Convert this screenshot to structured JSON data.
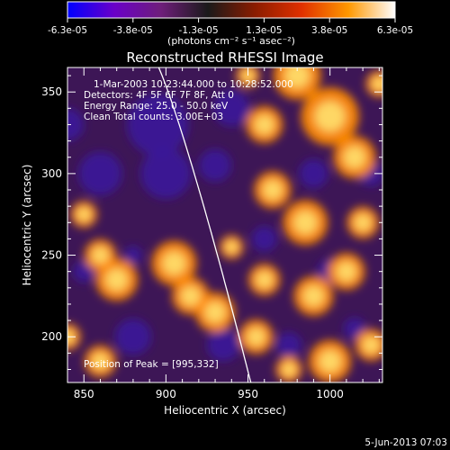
{
  "chart_data": {
    "type": "heatmap",
    "title": "Reconstructed RHESSI Image",
    "xlabel": "Heliocentric X (arcsec)",
    "ylabel": "Heliocentric Y (arcsec)",
    "xlim": [
      840,
      1032
    ],
    "ylim": [
      172,
      365
    ],
    "x_ticks": [
      850,
      900,
      950,
      1000
    ],
    "y_ticks": [
      200,
      250,
      300,
      350
    ],
    "colorbar": {
      "units": "(photons cm⁻² s⁻¹ asec⁻²)",
      "range": [
        -6.3e-05,
        6.3e-05
      ],
      "tick_labels": [
        "-6.3e-05",
        "-3.8e-05",
        "-1.3e-05",
        "1.3e-05",
        "3.8e-05",
        "6.3e-05"
      ],
      "colormap": [
        "#0000ff",
        "#6a00c8",
        "#6e1e7a",
        "#1a1a1a",
        "#8a1c00",
        "#e03000",
        "#ff9800",
        "#ffffff"
      ]
    },
    "annotations": [
      "1-Mar-2003 10:23:44.000 to 10:28:52.000",
      "Detectors: 4F 5F 6F 7F 8F, Att 0",
      "Energy Range: 25.0 - 50.0 keV",
      "Clean     Total counts: 3.00E+03"
    ],
    "peak_text": "Position of Peak = [995,332]",
    "footer_date": "5-Jun-2013 07:03",
    "limb_color": "#ffffff",
    "cold_color": "#3a1a9a",
    "warm_color": "#ff8a00",
    "hot_color": "#ffe070",
    "blobs": [
      {
        "x": 895,
        "y": 330,
        "w": 1.7
      },
      {
        "x": 900,
        "y": 300,
        "w": 1.4
      },
      {
        "x": 860,
        "y": 300,
        "w": 1.2
      },
      {
        "x": 940,
        "y": 340,
        "w": 1.0
      },
      {
        "x": 930,
        "y": 305,
        "w": 0.9
      },
      {
        "x": 840,
        "y": 330,
        "w": 0.9
      },
      {
        "x": 880,
        "y": 200,
        "w": 1.0
      },
      {
        "x": 935,
        "y": 195,
        "w": 0.9
      },
      {
        "x": 990,
        "y": 300,
        "w": 0.8
      },
      {
        "x": 1025,
        "y": 300,
        "w": 0.7
      },
      {
        "x": 1000,
        "y": 240,
        "w": 0.7
      },
      {
        "x": 960,
        "y": 260,
        "w": 0.7
      },
      {
        "x": 850,
        "y": 240,
        "w": 0.6
      },
      {
        "x": 975,
        "y": 195,
        "w": 0.7
      },
      {
        "x": 1015,
        "y": 205,
        "w": 0.6
      },
      {
        "x": 880,
        "y": 250,
        "w": 0.5
      }
    ],
    "hotspots": [
      {
        "x": 1000,
        "y": 335,
        "w": 2.2
      },
      {
        "x": 980,
        "y": 360,
        "w": 1.8
      },
      {
        "x": 1015,
        "y": 310,
        "w": 1.6
      },
      {
        "x": 960,
        "y": 330,
        "w": 1.4
      },
      {
        "x": 985,
        "y": 270,
        "w": 1.7
      },
      {
        "x": 965,
        "y": 290,
        "w": 1.4
      },
      {
        "x": 1020,
        "y": 270,
        "w": 1.2
      },
      {
        "x": 1010,
        "y": 240,
        "w": 1.4
      },
      {
        "x": 990,
        "y": 225,
        "w": 1.5
      },
      {
        "x": 960,
        "y": 235,
        "w": 1.2
      },
      {
        "x": 955,
        "y": 200,
        "w": 1.3
      },
      {
        "x": 930,
        "y": 215,
        "w": 1.5
      },
      {
        "x": 1000,
        "y": 185,
        "w": 1.6
      },
      {
        "x": 1025,
        "y": 195,
        "w": 1.2
      },
      {
        "x": 905,
        "y": 245,
        "w": 1.7
      },
      {
        "x": 915,
        "y": 225,
        "w": 1.4
      },
      {
        "x": 870,
        "y": 235,
        "w": 1.6
      },
      {
        "x": 860,
        "y": 250,
        "w": 1.2
      },
      {
        "x": 850,
        "y": 275,
        "w": 1.0
      },
      {
        "x": 860,
        "y": 185,
        "w": 1.2
      },
      {
        "x": 840,
        "y": 200,
        "w": 1.0
      },
      {
        "x": 975,
        "y": 180,
        "w": 1.0
      },
      {
        "x": 940,
        "y": 255,
        "w": 0.9
      },
      {
        "x": 1030,
        "y": 355,
        "w": 1.0
      },
      {
        "x": 950,
        "y": 360,
        "w": 0.9
      }
    ]
  }
}
